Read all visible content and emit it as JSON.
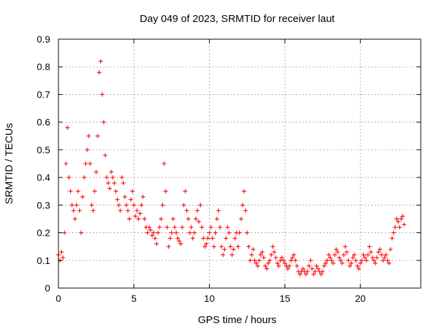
{
  "chart_data": {
    "type": "scatter",
    "title": "Day 049 of 2023, SRMTID for receiver laut",
    "xlabel": "GPS time / hours",
    "ylabel": "SRMTID / TECUs",
    "xlim": [
      0,
      24
    ],
    "ylim": [
      0,
      0.9
    ],
    "xticks": [
      0,
      5,
      10,
      15,
      20
    ],
    "xtick_labels": [
      "0",
      "5",
      "10",
      "15",
      "20"
    ],
    "yticks": [
      0,
      0.1,
      0.2,
      0.3,
      0.4,
      0.5,
      0.6,
      0.7,
      0.8,
      0.9
    ],
    "ytick_labels": [
      "0",
      "0.1",
      "0.2",
      "0.3",
      "0.4",
      "0.5",
      "0.6",
      "0.7",
      "0.8",
      "0.9"
    ],
    "grid": true,
    "marker": "+",
    "series_color": "#ff0000",
    "series": [
      {
        "name": "SRMTID",
        "x": [
          0.0,
          0.1,
          0.2,
          0.3,
          0.4,
          0.5,
          0.6,
          0.7,
          0.8,
          0.9,
          1.0,
          1.1,
          1.2,
          1.3,
          1.4,
          1.5,
          1.6,
          1.7,
          1.8,
          1.9,
          2.0,
          2.1,
          2.2,
          2.3,
          2.4,
          2.5,
          2.6,
          2.7,
          2.8,
          2.9,
          3.0,
          3.1,
          3.2,
          3.3,
          3.4,
          3.5,
          3.6,
          3.7,
          3.8,
          3.9,
          4.0,
          4.1,
          4.2,
          4.3,
          4.4,
          4.5,
          4.6,
          4.7,
          4.8,
          4.9,
          5.0,
          5.1,
          5.2,
          5.3,
          5.4,
          5.5,
          5.6,
          5.7,
          5.8,
          5.9,
          6.0,
          6.1,
          6.2,
          6.3,
          6.4,
          6.5,
          6.6,
          6.7,
          6.8,
          6.9,
          7.0,
          7.1,
          7.2,
          7.3,
          7.4,
          7.5,
          7.6,
          7.7,
          7.8,
          7.9,
          8.0,
          8.1,
          8.2,
          8.3,
          8.4,
          8.5,
          8.6,
          8.7,
          8.8,
          8.9,
          9.0,
          9.1,
          9.2,
          9.3,
          9.4,
          9.5,
          9.6,
          9.7,
          9.8,
          9.9,
          10.0,
          10.1,
          10.2,
          10.3,
          10.4,
          10.5,
          10.6,
          10.7,
          10.8,
          10.9,
          11.0,
          11.1,
          11.2,
          11.3,
          11.4,
          11.5,
          11.6,
          11.7,
          11.8,
          11.9,
          12.0,
          12.1,
          12.2,
          12.3,
          12.4,
          12.5,
          12.6,
          12.7,
          12.8,
          12.9,
          13.0,
          13.1,
          13.2,
          13.3,
          13.4,
          13.5,
          13.6,
          13.7,
          13.8,
          13.9,
          14.0,
          14.1,
          14.2,
          14.3,
          14.4,
          14.5,
          14.6,
          14.7,
          14.8,
          14.9,
          15.0,
          15.1,
          15.2,
          15.3,
          15.4,
          15.5,
          15.6,
          15.7,
          15.8,
          15.9,
          16.0,
          16.1,
          16.2,
          16.3,
          16.4,
          16.5,
          16.6,
          16.7,
          16.8,
          16.9,
          17.0,
          17.1,
          17.2,
          17.3,
          17.4,
          17.5,
          17.6,
          17.7,
          17.8,
          17.9,
          18.0,
          18.1,
          18.2,
          18.3,
          18.4,
          18.5,
          18.6,
          18.7,
          18.8,
          18.9,
          19.0,
          19.1,
          19.2,
          19.3,
          19.4,
          19.5,
          19.6,
          19.7,
          19.8,
          19.9,
          20.0,
          20.1,
          20.2,
          20.3,
          20.4,
          20.5,
          20.6,
          20.7,
          20.8,
          20.9,
          21.0,
          21.1,
          21.2,
          21.3,
          21.4,
          21.5,
          21.6,
          21.7,
          21.8,
          21.9,
          22.0,
          22.1,
          22.2,
          22.3,
          22.4,
          22.5,
          22.6,
          22.7,
          22.8,
          22.9
        ],
        "y": [
          0.12,
          0.1,
          0.13,
          0.11,
          0.2,
          0.45,
          0.58,
          0.4,
          0.35,
          0.3,
          0.28,
          0.25,
          0.3,
          0.35,
          0.28,
          0.2,
          0.33,
          0.4,
          0.45,
          0.5,
          0.55,
          0.45,
          0.3,
          0.28,
          0.35,
          0.42,
          0.55,
          0.78,
          0.82,
          0.7,
          0.6,
          0.48,
          0.4,
          0.38,
          0.36,
          0.42,
          0.4,
          0.38,
          0.35,
          0.32,
          0.3,
          0.28,
          0.4,
          0.38,
          0.33,
          0.3,
          0.28,
          0.25,
          0.32,
          0.35,
          0.3,
          0.26,
          0.28,
          0.25,
          0.27,
          0.3,
          0.33,
          0.25,
          0.22,
          0.2,
          0.22,
          0.21,
          0.19,
          0.2,
          0.18,
          0.16,
          0.2,
          0.22,
          0.25,
          0.3,
          0.45,
          0.35,
          0.22,
          0.15,
          0.18,
          0.2,
          0.25,
          0.22,
          0.2,
          0.18,
          0.17,
          0.16,
          0.22,
          0.3,
          0.35,
          0.28,
          0.25,
          0.2,
          0.22,
          0.18,
          0.2,
          0.25,
          0.28,
          0.24,
          0.3,
          0.22,
          0.18,
          0.15,
          0.16,
          0.18,
          0.2,
          0.22,
          0.18,
          0.15,
          0.2,
          0.25,
          0.28,
          0.22,
          0.15,
          0.12,
          0.14,
          0.18,
          0.22,
          0.2,
          0.15,
          0.12,
          0.14,
          0.18,
          0.2,
          0.15,
          0.2,
          0.25,
          0.3,
          0.35,
          0.28,
          0.2,
          0.15,
          0.1,
          0.12,
          0.14,
          0.1,
          0.09,
          0.08,
          0.1,
          0.12,
          0.13,
          0.11,
          0.08,
          0.07,
          0.09,
          0.1,
          0.12,
          0.15,
          0.13,
          0.11,
          0.09,
          0.08,
          0.1,
          0.11,
          0.1,
          0.09,
          0.08,
          0.07,
          0.08,
          0.1,
          0.11,
          0.12,
          0.1,
          0.08,
          0.06,
          0.05,
          0.06,
          0.07,
          0.06,
          0.05,
          0.06,
          0.08,
          0.1,
          0.07,
          0.05,
          0.06,
          0.08,
          0.07,
          0.06,
          0.05,
          0.06,
          0.08,
          0.09,
          0.1,
          0.12,
          0.11,
          0.1,
          0.09,
          0.12,
          0.14,
          0.13,
          0.11,
          0.1,
          0.09,
          0.12,
          0.15,
          0.13,
          0.1,
          0.08,
          0.09,
          0.11,
          0.12,
          0.1,
          0.08,
          0.07,
          0.09,
          0.1,
          0.12,
          0.11,
          0.1,
          0.12,
          0.15,
          0.13,
          0.11,
          0.1,
          0.09,
          0.11,
          0.13,
          0.14,
          0.12,
          0.1,
          0.11,
          0.12,
          0.1,
          0.09,
          0.14,
          0.18,
          0.2,
          0.22,
          0.25,
          0.24,
          0.22,
          0.25,
          0.26,
          0.23
        ]
      }
    ]
  }
}
